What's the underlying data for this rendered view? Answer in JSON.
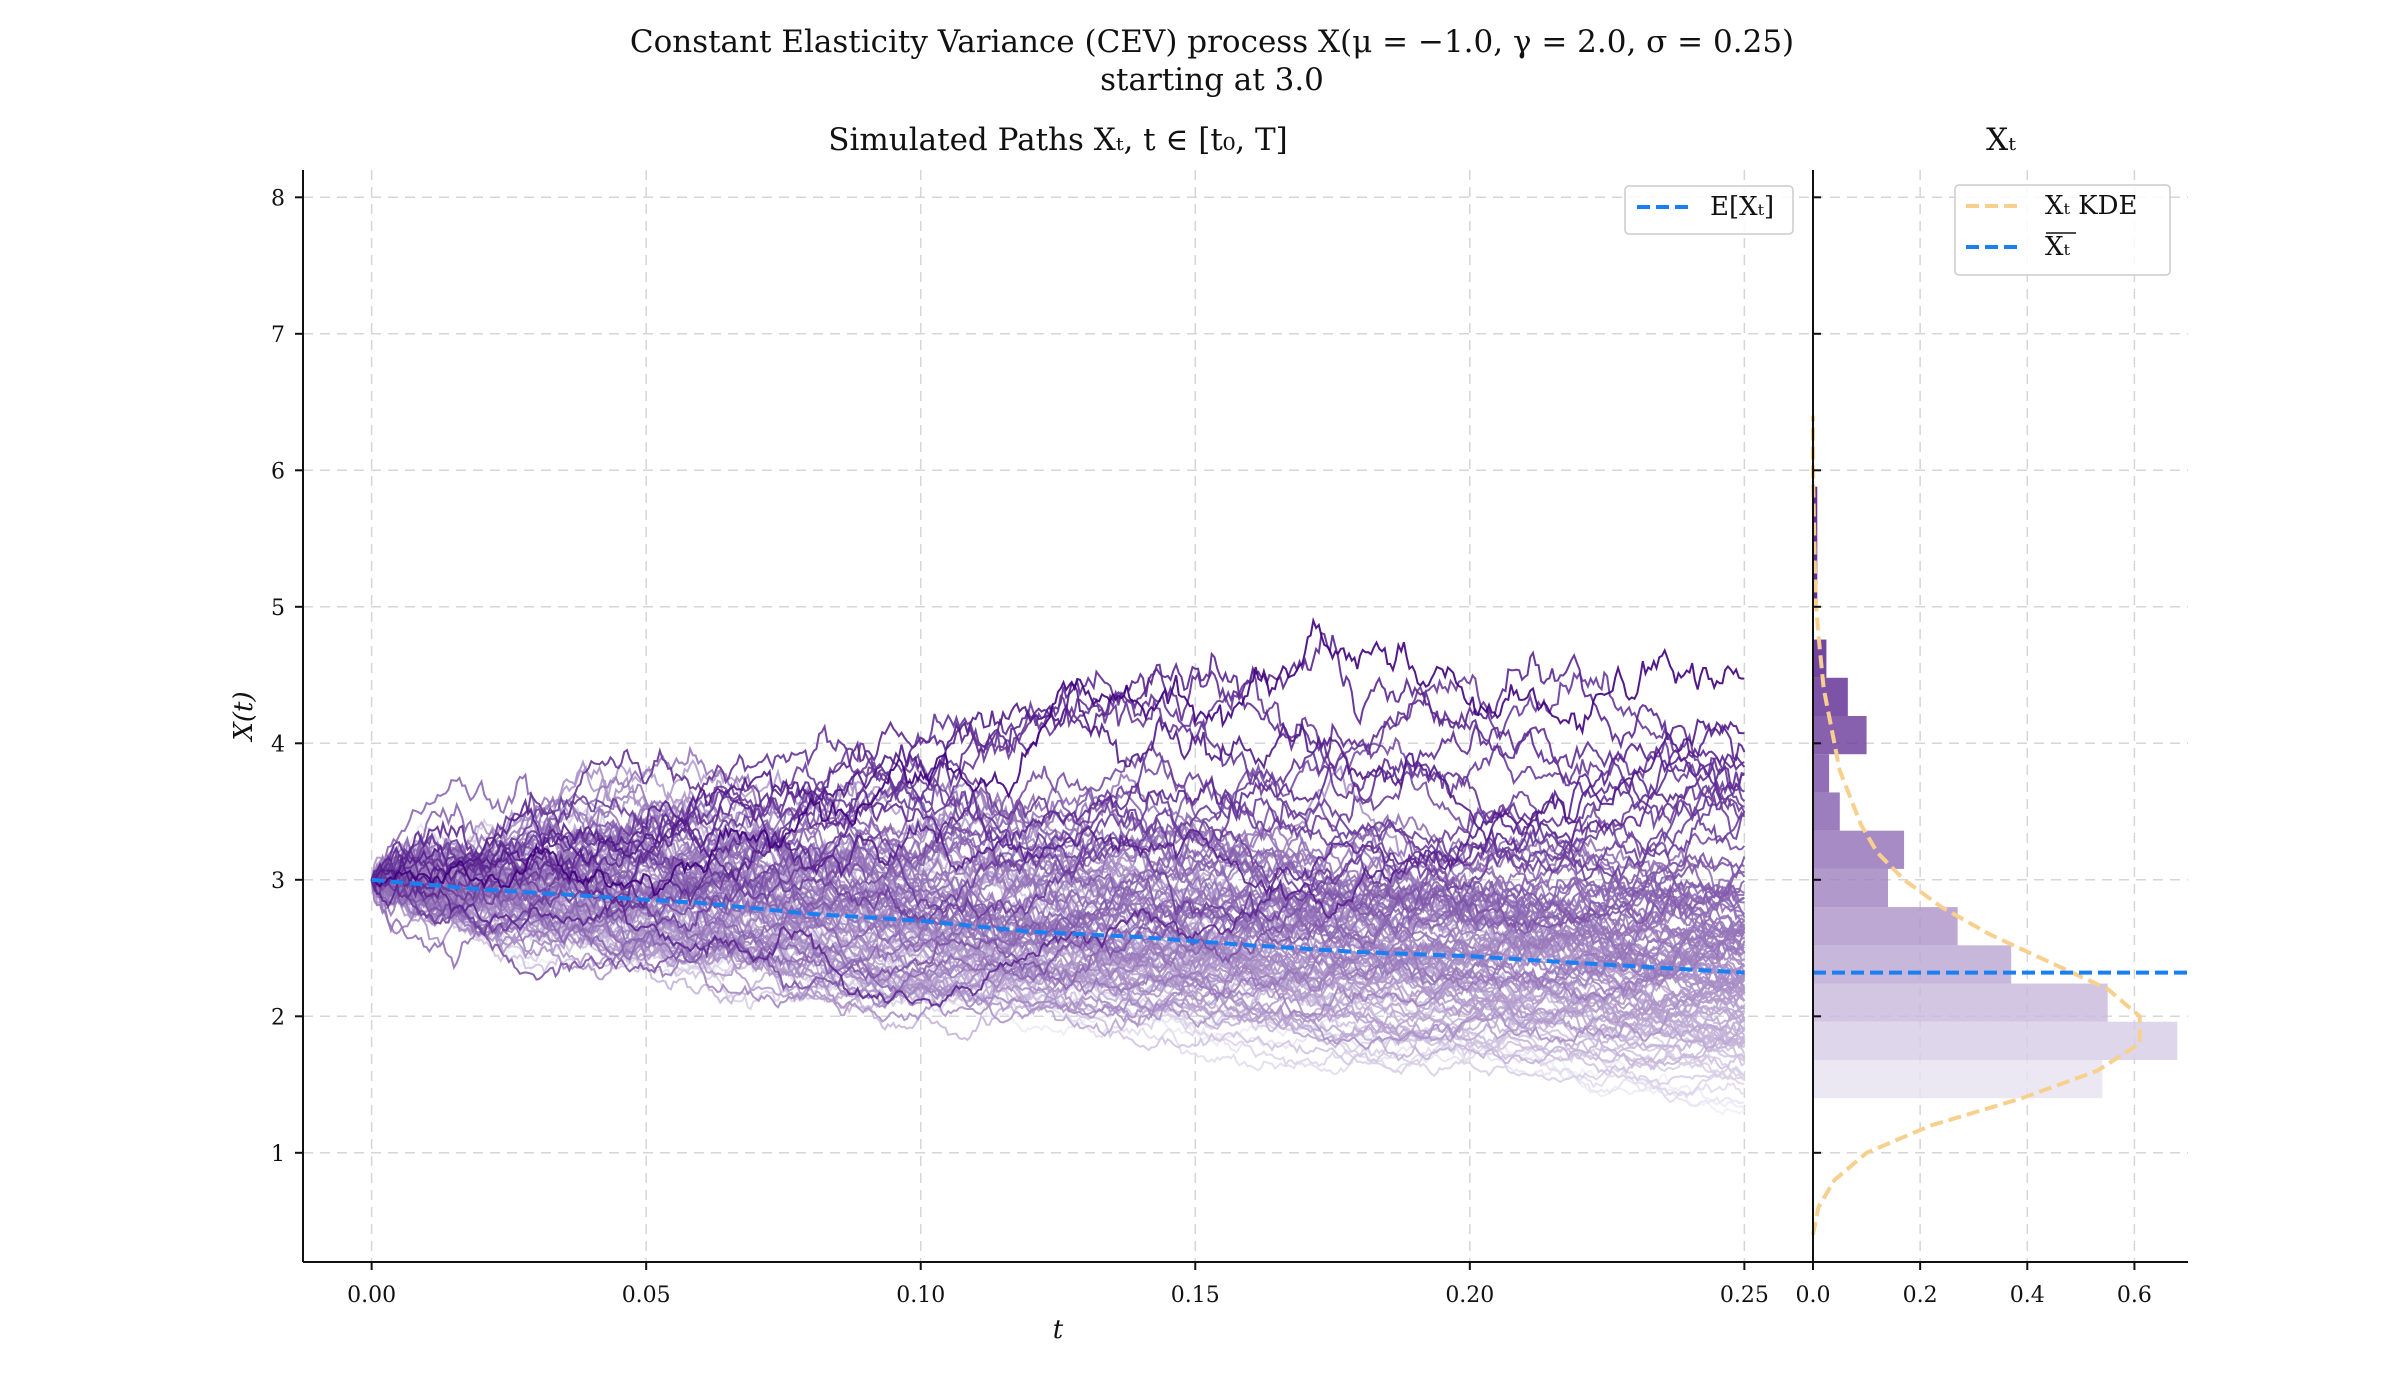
{
  "figure": {
    "suptitle_line1": "Constant Elasticity Variance (CEV) process X(μ = −1.0, γ = 2.0, σ = 0.25)",
    "suptitle_line2": "starting at 3.0"
  },
  "chart_data": [
    {
      "type": "line",
      "title": "Simulated Paths Xₜ, t ∈ [t₀, T]",
      "xlabel": "t",
      "ylabel": "X(t)",
      "xlim": [
        -0.0125,
        0.2625
      ],
      "ylim": [
        0.2,
        8.2
      ],
      "x_ticks": [
        0.0,
        0.05,
        0.1,
        0.15,
        0.2,
        0.25
      ],
      "x_tick_labels": [
        "0.00",
        "0.05",
        "0.10",
        "0.15",
        "0.20",
        "0.25"
      ],
      "y_ticks": [
        1,
        2,
        3,
        4,
        5,
        6,
        7,
        8
      ],
      "y_tick_labels": [
        "1",
        "2",
        "3",
        "4",
        "5",
        "6",
        "7",
        "8"
      ],
      "grid": true,
      "legend": {
        "placement": "top-right",
        "entries": [
          "E[Xₜ]"
        ]
      },
      "simulation": {
        "x0": 3.0,
        "mu": -1.0,
        "gamma": 2.0,
        "sigma": 0.25,
        "t_end": 0.25
      },
      "paths_color_light": "#f0eff7",
      "paths_color_dark": "#3f007d",
      "series": [
        {
          "name": "E[Xₜ]",
          "style": "dashed",
          "color": "#1a7ff0",
          "x": [
            0.0,
            0.02,
            0.04,
            0.06,
            0.08,
            0.1,
            0.12,
            0.14,
            0.16,
            0.18,
            0.2,
            0.22,
            0.25
          ],
          "y": [
            3.0,
            2.93,
            2.88,
            2.83,
            2.75,
            2.7,
            2.62,
            2.58,
            2.52,
            2.47,
            2.44,
            2.39,
            2.32
          ]
        }
      ]
    },
    {
      "type": "bar",
      "orientation": "horizontal",
      "title": "Xₜ",
      "xlim": [
        0,
        0.7
      ],
      "x_ticks": [
        0.0,
        0.2,
        0.4,
        0.6
      ],
      "x_tick_labels": [
        "0.0",
        "0.2",
        "0.4",
        "0.6"
      ],
      "grid": true,
      "legend": {
        "placement": "top-right",
        "entries": [
          "Xₜ KDE",
          "Xₜ (mean)"
        ]
      },
      "legend_labels": [
        "Xₜ KDE",
        "Xₜ"
      ],
      "histogram": {
        "bin_edges": [
          1.4,
          1.68,
          1.96,
          2.24,
          2.52,
          2.8,
          3.08,
          3.36,
          3.64,
          3.92,
          4.2,
          4.48,
          4.76,
          5.04,
          5.32,
          5.6,
          5.88
        ],
        "density": [
          0.54,
          0.68,
          0.55,
          0.37,
          0.27,
          0.14,
          0.17,
          0.05,
          0.03,
          0.1,
          0.065,
          0.025,
          0.0,
          0.008,
          0.008,
          0.008
        ]
      },
      "kde": {
        "color": "#f8d08e",
        "y": [
          0.4,
          0.6,
          0.8,
          1.0,
          1.2,
          1.4,
          1.6,
          1.8,
          2.0,
          2.2,
          2.4,
          2.6,
          2.8,
          3.0,
          3.2,
          3.4,
          3.6,
          3.8,
          4.0,
          4.2,
          4.4,
          4.6,
          4.8,
          5.0,
          5.2,
          5.4,
          5.6,
          5.8,
          6.0,
          6.2,
          6.4
        ],
        "density": [
          0.0,
          0.01,
          0.04,
          0.1,
          0.22,
          0.39,
          0.53,
          0.61,
          0.61,
          0.55,
          0.44,
          0.33,
          0.24,
          0.17,
          0.12,
          0.09,
          0.07,
          0.05,
          0.04,
          0.03,
          0.02,
          0.015,
          0.01,
          0.006,
          0.004,
          0.003,
          0.002,
          0.001,
          0.0,
          0.0,
          0.0
        ]
      },
      "mean": {
        "value": 2.32,
        "color": "#1a7ff0"
      }
    }
  ]
}
